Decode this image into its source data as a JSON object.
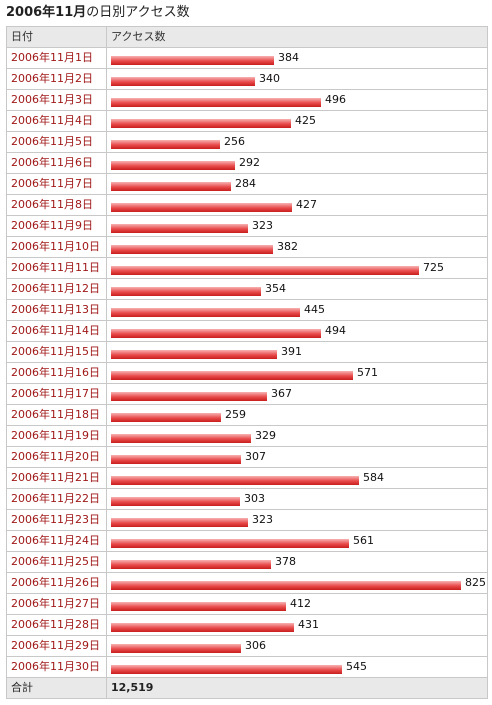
{
  "title": {
    "bold": "2006年11月",
    "normal": "の日別アクセス数"
  },
  "headers": {
    "date": "日付",
    "access": "アクセス数"
  },
  "total": {
    "label": "合計",
    "value": "12,519"
  },
  "colors": {
    "bar": "#e84a4a",
    "date_text": "#a01818",
    "header_bg": "#e9e9e9"
  },
  "chart_data": {
    "type": "bar",
    "title": "2006年11月の日別アクセス数",
    "xlabel": "日付",
    "ylabel": "アクセス数",
    "categories": [
      "2006年11月1日",
      "2006年11月2日",
      "2006年11月3日",
      "2006年11月4日",
      "2006年11月5日",
      "2006年11月6日",
      "2006年11月7日",
      "2006年11月8日",
      "2006年11月9日",
      "2006年11月10日",
      "2006年11月11日",
      "2006年11月12日",
      "2006年11月13日",
      "2006年11月14日",
      "2006年11月15日",
      "2006年11月16日",
      "2006年11月17日",
      "2006年11月18日",
      "2006年11月19日",
      "2006年11月20日",
      "2006年11月21日",
      "2006年11月22日",
      "2006年11月23日",
      "2006年11月24日",
      "2006年11月25日",
      "2006年11月26日",
      "2006年11月27日",
      "2006年11月28日",
      "2006年11月29日",
      "2006年11月30日"
    ],
    "values": [
      384,
      340,
      496,
      425,
      256,
      292,
      284,
      427,
      323,
      382,
      725,
      354,
      445,
      494,
      391,
      571,
      367,
      259,
      329,
      307,
      584,
      303,
      323,
      561,
      378,
      825,
      412,
      431,
      306,
      545
    ],
    "ylim": [
      0,
      825
    ],
    "grid": false,
    "legend": "none"
  }
}
